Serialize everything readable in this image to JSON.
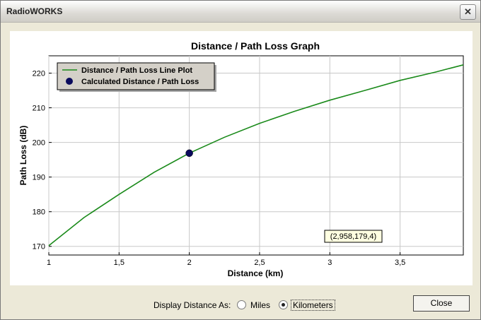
{
  "window": {
    "title": "RadioWORKS",
    "close_glyph": "✕"
  },
  "chart_data": {
    "type": "line",
    "title": "Distance / Path Loss Graph",
    "xlabel": "Distance (km)",
    "ylabel": "Path Loss (dB)",
    "xlim": [
      1,
      3.95
    ],
    "ylim": [
      167.5,
      225
    ],
    "x_ticks": [
      "1",
      "1,5",
      "2",
      "2,5",
      "3",
      "3,5"
    ],
    "x_tick_values": [
      1,
      1.5,
      2,
      2.5,
      3,
      3.5
    ],
    "y_ticks": [
      "170",
      "180",
      "190",
      "200",
      "210",
      "220"
    ],
    "y_tick_values": [
      170,
      180,
      190,
      200,
      210,
      220
    ],
    "grid": true,
    "legend_placement": "top-left",
    "series": [
      {
        "name": "Distance / Path Loss Line Plot",
        "color": "#1a8a1a",
        "x": [
          1,
          1.25,
          1.5,
          1.75,
          2,
          2.25,
          2.5,
          2.75,
          3,
          3.25,
          3.5,
          3.75,
          3.95
        ],
        "y": [
          170.2,
          178.3,
          185.0,
          191.4,
          196.9,
          201.5,
          205.5,
          209.0,
          212.2,
          215.0,
          217.9,
          220.3,
          222.4
        ]
      },
      {
        "name": "Calculated Distance / Path Loss",
        "color": "#0a0a5c",
        "marker": "circle",
        "x": [
          2
        ],
        "y": [
          196.9
        ]
      }
    ],
    "annotation": "(2,958,179,4)"
  },
  "footer": {
    "display_label": "Display Distance As:",
    "options": [
      {
        "label": "Miles",
        "checked": false
      },
      {
        "label": "Kilometers",
        "checked": true
      }
    ],
    "close_label": "Close"
  }
}
